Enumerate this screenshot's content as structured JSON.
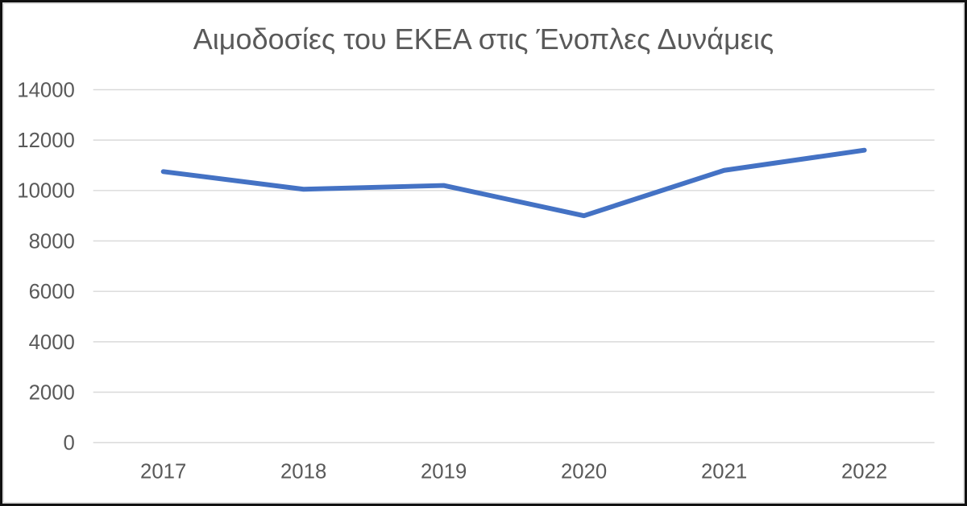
{
  "window": {
    "background_color": "#ffffff",
    "border_color": "#111111"
  },
  "chart_data": {
    "type": "line",
    "title": "Αιμοδοσίες του ΕΚΕΑ στις Ένοπλες Δυνάμεις",
    "categories": [
      "2017",
      "2018",
      "2019",
      "2020",
      "2021",
      "2022"
    ],
    "values": [
      10750,
      10050,
      10200,
      9000,
      10800,
      11600
    ],
    "xlabel": "",
    "ylabel": "",
    "ylim": [
      0,
      14000
    ],
    "y_ticks": [
      0,
      2000,
      4000,
      6000,
      8000,
      10000,
      12000,
      14000
    ],
    "grid": "horizontal",
    "legend": "none",
    "line_color": "#4472C4",
    "line_width": 6,
    "gridline_color": "#D9D9D9",
    "tick_label_color": "#595959",
    "title_color": "#595959"
  }
}
